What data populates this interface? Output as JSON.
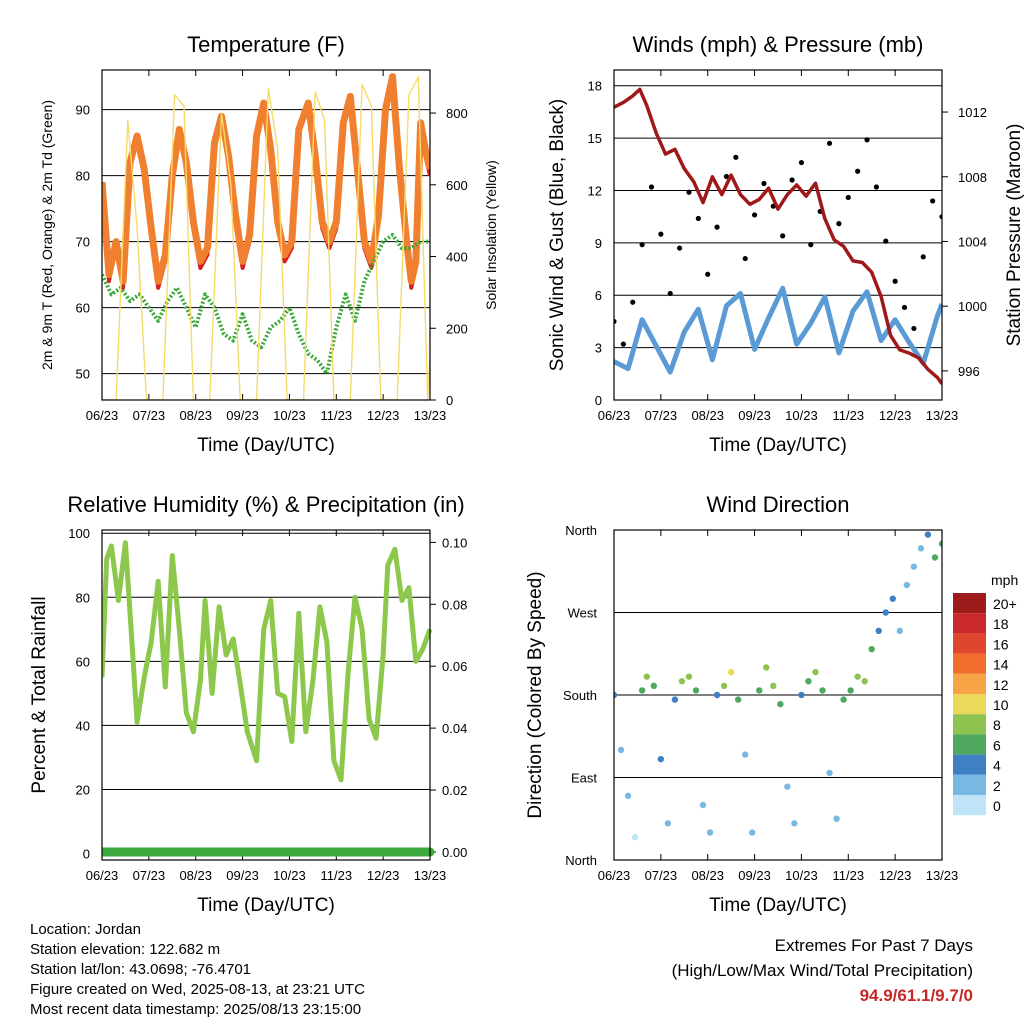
{
  "colors": {
    "temp2m": "#d62020",
    "temp9m": "#f08030",
    "dewpoint": "#3aa83a",
    "insolation": "#f5dc6a",
    "sonic": "#5b9bd5",
    "gust": "#000000",
    "pressure": "#a01818",
    "rh": "#8cc84b",
    "precip": "#3aa83a",
    "extremes": "#c62828"
  },
  "x_ticks": [
    "06/23",
    "07/23",
    "08/23",
    "09/23",
    "10/23",
    "11/23",
    "12/23",
    "13/23"
  ],
  "info": {
    "location": "Location: Jordan",
    "elevation": "Station elevation: 122.682 m",
    "latlon": "Station lat/lon: 43.0698; -76.4701",
    "created": "Figure created on Wed, 2025-08-13, at 23:21 UTC",
    "recent": "Most recent data timestamp: 2025/08/13 23:15:00"
  },
  "extremes": {
    "title": "Extremes For Past 7 Days",
    "subtitle": "(High/Low/Max Wind/Total Precipitation)",
    "values": "94.9/61.1/9.7/0"
  },
  "chart_data": [
    {
      "type": "line",
      "title": "Temperature (F)",
      "xlabel": "Time (Day/UTC)",
      "ylabel": "2m & 9m T (Red, Orange) & 2m Td (Green)",
      "ylabel_right": "Solar Insolation (Yellow)",
      "xlim": [
        6,
        13
      ],
      "ylim": [
        46,
        96
      ],
      "y_ticks": [
        50,
        60,
        70,
        80,
        90
      ],
      "ylim_right": [
        0,
        920
      ],
      "y_ticks_right": [
        0,
        200,
        400,
        600,
        800
      ],
      "grid": true,
      "series": [
        {
          "key": "temp2m",
          "x": [
            6.0,
            6.15,
            6.3,
            6.45,
            6.6,
            6.75,
            6.9,
            7.05,
            7.2,
            7.35,
            7.5,
            7.65,
            7.8,
            7.95,
            8.1,
            8.25,
            8.4,
            8.55,
            8.7,
            8.85,
            9.0,
            9.15,
            9.3,
            9.45,
            9.6,
            9.75,
            9.9,
            10.05,
            10.2,
            10.4,
            10.55,
            10.7,
            10.85,
            11.0,
            11.15,
            11.3,
            11.45,
            11.6,
            11.75,
            11.9,
            12.05,
            12.2,
            12.35,
            12.5,
            12.6,
            12.7,
            12.8,
            12.9,
            13.0
          ],
          "y": [
            79,
            64,
            70,
            63,
            82,
            85,
            80,
            71,
            63,
            67,
            80,
            87,
            81,
            72,
            66,
            68,
            85,
            89,
            82,
            73,
            66,
            70,
            86,
            91,
            83,
            72,
            67,
            69,
            87,
            90,
            82,
            72,
            69,
            72,
            88,
            91,
            80,
            69,
            66,
            73,
            90,
            95,
            80,
            69,
            63,
            66,
            88,
            83,
            80
          ]
        },
        {
          "key": "temp9m",
          "x": [
            6.0,
            6.15,
            6.3,
            6.45,
            6.6,
            6.75,
            6.9,
            7.05,
            7.2,
            7.35,
            7.5,
            7.65,
            7.8,
            7.95,
            8.1,
            8.25,
            8.4,
            8.55,
            8.7,
            8.85,
            9.0,
            9.15,
            9.3,
            9.45,
            9.6,
            9.75,
            9.9,
            10.05,
            10.2,
            10.4,
            10.55,
            10.7,
            10.85,
            11.0,
            11.15,
            11.3,
            11.45,
            11.6,
            11.75,
            11.9,
            12.05,
            12.2,
            12.35,
            12.5,
            12.6,
            12.7,
            12.8,
            12.9,
            13.0
          ],
          "y": [
            79,
            65,
            70,
            64,
            82,
            86,
            81,
            72,
            64,
            68,
            80,
            87,
            82,
            73,
            67,
            69,
            85,
            89,
            83,
            74,
            67,
            71,
            86,
            91,
            84,
            73,
            68,
            70,
            87,
            91,
            83,
            73,
            70,
            73,
            88,
            92,
            81,
            70,
            67,
            74,
            90,
            95,
            81,
            70,
            64,
            67,
            88,
            84,
            81
          ]
        },
        {
          "key": "dewpoint",
          "x": [
            6.0,
            6.2,
            6.4,
            6.6,
            6.8,
            7.0,
            7.2,
            7.4,
            7.6,
            7.8,
            8.0,
            8.2,
            8.4,
            8.6,
            8.8,
            9.0,
            9.2,
            9.4,
            9.6,
            9.8,
            10.0,
            10.2,
            10.4,
            10.6,
            10.8,
            11.0,
            11.2,
            11.4,
            11.6,
            11.8,
            12.0,
            12.2,
            12.4,
            12.6,
            12.8,
            13.0
          ],
          "y": [
            65,
            62,
            63,
            61,
            62,
            60,
            58,
            61,
            63,
            60,
            57,
            62,
            60,
            56,
            55,
            59,
            55,
            54,
            57,
            58,
            60,
            56,
            53,
            52,
            50,
            57,
            62,
            58,
            64,
            67,
            70,
            71,
            69,
            69,
            70,
            70
          ]
        },
        {
          "key": "insolation",
          "axis": "right",
          "x": [
            6.0,
            6.3,
            6.55,
            6.75,
            6.95,
            7.3,
            7.55,
            7.75,
            7.95,
            8.3,
            8.55,
            8.75,
            8.95,
            9.3,
            9.55,
            9.75,
            9.95,
            10.3,
            10.55,
            10.75,
            10.95,
            11.3,
            11.55,
            11.75,
            11.95,
            12.3,
            12.55,
            12.75,
            12.95,
            13.0
          ],
          "y": [
            0,
            0,
            780,
            480,
            0,
            0,
            850,
            820,
            0,
            0,
            800,
            600,
            0,
            0,
            870,
            700,
            0,
            0,
            860,
            780,
            0,
            0,
            880,
            820,
            0,
            0,
            850,
            900,
            0,
            120
          ]
        }
      ]
    },
    {
      "type": "scatter",
      "title": "Winds (mph) & Pressure (mb)",
      "xlabel": "Time (Day/UTC)",
      "ylabel": "Sonic Wind & Gust (Blue, Black)",
      "ylabel_right": "Station Pressure (Maroon)",
      "xlim": [
        6,
        13
      ],
      "ylim": [
        0,
        18.9
      ],
      "y_ticks": [
        0,
        3,
        6,
        9,
        12,
        15,
        18
      ],
      "ylim_right": [
        994.2,
        1014.6
      ],
      "y_ticks_right": [
        996,
        1000,
        1004,
        1008,
        1012
      ],
      "grid": true,
      "series": [
        {
          "key": "sonic",
          "x": [
            6.0,
            6.3,
            6.6,
            6.9,
            7.2,
            7.5,
            7.8,
            8.1,
            8.4,
            8.7,
            9.0,
            9.3,
            9.6,
            9.9,
            10.2,
            10.5,
            10.8,
            11.1,
            11.4,
            11.7,
            12.0,
            12.3,
            12.6,
            12.9,
            13.0
          ],
          "y": [
            2.2,
            1.8,
            4.6,
            3.1,
            1.6,
            3.9,
            5.2,
            2.3,
            5.4,
            6.1,
            2.9,
            4.7,
            6.4,
            3.2,
            4.4,
            5.9,
            2.7,
            5.1,
            6.2,
            3.4,
            4.6,
            3.3,
            2.1,
            4.8,
            5.5
          ]
        },
        {
          "key": "gust",
          "x": [
            6.0,
            6.2,
            6.4,
            6.6,
            6.8,
            7.0,
            7.2,
            7.4,
            7.6,
            7.8,
            8.0,
            8.2,
            8.4,
            8.6,
            8.8,
            9.0,
            9.2,
            9.4,
            9.6,
            9.8,
            10.0,
            10.2,
            10.4,
            10.6,
            10.8,
            11.0,
            11.2,
            11.4,
            11.6,
            11.8,
            12.0,
            12.2,
            12.4,
            12.6,
            12.8,
            13.0
          ],
          "y": [
            4.5,
            3.2,
            5.6,
            8.9,
            12.2,
            9.5,
            6.1,
            8.7,
            11.9,
            10.4,
            7.2,
            9.9,
            12.8,
            13.9,
            8.1,
            10.6,
            12.4,
            11.1,
            9.4,
            12.6,
            13.6,
            8.9,
            10.8,
            14.7,
            10.1,
            11.6,
            13.1,
            14.9,
            12.2,
            9.1,
            6.8,
            5.3,
            4.1,
            8.2,
            11.4,
            10.5
          ]
        },
        {
          "key": "pressure",
          "axis": "right",
          "x": [
            6.0,
            6.2,
            6.4,
            6.55,
            6.7,
            6.9,
            7.1,
            7.3,
            7.5,
            7.7,
            7.9,
            8.1,
            8.3,
            8.5,
            8.7,
            8.9,
            9.1,
            9.3,
            9.5,
            9.7,
            9.9,
            10.1,
            10.3,
            10.5,
            10.7,
            10.9,
            11.1,
            11.3,
            11.5,
            11.7,
            11.9,
            12.1,
            12.3,
            12.5,
            12.7,
            12.9,
            13.0
          ],
          "y": [
            1012.3,
            1012.6,
            1013.0,
            1013.4,
            1012.4,
            1010.7,
            1009.4,
            1009.7,
            1008.5,
            1007.7,
            1006.4,
            1008.0,
            1006.9,
            1008.1,
            1006.9,
            1006.3,
            1006.6,
            1007.3,
            1006.0,
            1006.9,
            1007.5,
            1006.8,
            1007.6,
            1005.4,
            1004.1,
            1003.7,
            1002.8,
            1002.7,
            1002.1,
            1000.6,
            998.2,
            997.3,
            997.1,
            996.8,
            996.1,
            995.6,
            995.2
          ]
        }
      ]
    },
    {
      "type": "line",
      "title": "Relative Humidity (%) & Precipitation (in)",
      "xlabel": "Time (Day/UTC)",
      "ylabel": "Percent & Total Rainfall",
      "xlim": [
        6,
        13
      ],
      "ylim": [
        -2,
        101
      ],
      "y_ticks": [
        0,
        20,
        40,
        60,
        80,
        100
      ],
      "ylim_right": [
        -0.0026,
        0.104
      ],
      "y_ticks_right": [
        "0.00",
        "0.02",
        "0.04",
        "0.06",
        "0.08",
        "0.10"
      ],
      "grid": true,
      "series": [
        {
          "key": "rh",
          "x": [
            6.0,
            6.1,
            6.2,
            6.35,
            6.5,
            6.62,
            6.75,
            6.9,
            7.05,
            7.2,
            7.35,
            7.5,
            7.65,
            7.8,
            7.95,
            8.1,
            8.2,
            8.35,
            8.5,
            8.65,
            8.8,
            8.95,
            9.1,
            9.3,
            9.45,
            9.6,
            9.75,
            9.9,
            10.05,
            10.2,
            10.35,
            10.5,
            10.65,
            10.8,
            10.95,
            11.1,
            11.25,
            11.4,
            11.55,
            11.7,
            11.85,
            12.0,
            12.1,
            12.25,
            12.4,
            12.55,
            12.7,
            12.85,
            13.0
          ],
          "y": [
            55,
            92,
            96,
            79,
            97,
            70,
            41,
            55,
            66,
            85,
            52,
            93,
            70,
            44,
            38,
            54,
            79,
            50,
            77,
            62,
            67,
            53,
            38,
            29,
            70,
            79,
            50,
            49,
            35,
            75,
            38,
            54,
            77,
            66,
            29,
            23,
            56,
            80,
            70,
            42,
            36,
            62,
            90,
            95,
            79,
            83,
            60,
            64,
            70
          ]
        },
        {
          "key": "precip",
          "axis": "right",
          "x": [
            6.0,
            12.6,
            13.0
          ],
          "y": [
            0.0,
            0.0,
            0.0
          ]
        }
      ]
    },
    {
      "type": "scatter",
      "title": "Wind Direction",
      "xlabel": "Time (Day/UTC)",
      "ylabel": "Direction (Colored By Speed)",
      "xlim": [
        6,
        13
      ],
      "ylim": [
        0,
        360
      ],
      "y_ticks_labels": [
        "North",
        "East",
        "South",
        "West",
        "North"
      ],
      "legend_title": "mph",
      "legend_labels": [
        "20+",
        "18",
        "16",
        "14",
        "12",
        "10",
        "8",
        "6",
        "4",
        "2",
        "0"
      ],
      "legend_colors": [
        "#9e1b1b",
        "#c9282d",
        "#e0452e",
        "#f06d2e",
        "#f7a447",
        "#ecd95a",
        "#8fc350",
        "#4ea85e",
        "#3f80c2",
        "#7ab8e4",
        "#bfe4f7"
      ],
      "grid": true,
      "series": [
        {
          "key": "direction",
          "x": [
            6.0,
            6.15,
            6.3,
            6.45,
            6.6,
            6.7,
            6.85,
            7.0,
            7.15,
            7.3,
            7.45,
            7.6,
            7.75,
            7.9,
            8.05,
            8.2,
            8.35,
            8.5,
            8.65,
            8.8,
            8.95,
            9.1,
            9.25,
            9.4,
            9.55,
            9.7,
            9.85,
            10.0,
            10.15,
            10.3,
            10.45,
            10.6,
            10.75,
            10.9,
            11.05,
            11.2,
            11.35,
            11.5,
            11.65,
            11.8,
            11.95,
            12.1,
            12.25,
            12.4,
            12.55,
            12.7,
            12.85,
            13.0
          ],
          "y": [
            180,
            120,
            70,
            25,
            185,
            200,
            190,
            110,
            40,
            175,
            195,
            200,
            185,
            60,
            30,
            180,
            190,
            205,
            175,
            115,
            30,
            185,
            210,
            190,
            170,
            80,
            40,
            180,
            195,
            205,
            185,
            95,
            45,
            175,
            185,
            200,
            195,
            230,
            250,
            270,
            285,
            250,
            300,
            320,
            340,
            355,
            330,
            345
          ],
          "speed": [
            3,
            2,
            1,
            0,
            5,
            8,
            6,
            3,
            1,
            4,
            7,
            8,
            5,
            2,
            1,
            4,
            7,
            9,
            6,
            2,
            1,
            5,
            8,
            7,
            6,
            2,
            1,
            4,
            6,
            8,
            5,
            2,
            1,
            5,
            6,
            8,
            7,
            5,
            4,
            3,
            3,
            2,
            1,
            1,
            2,
            3,
            5,
            6
          ]
        }
      ]
    }
  ]
}
